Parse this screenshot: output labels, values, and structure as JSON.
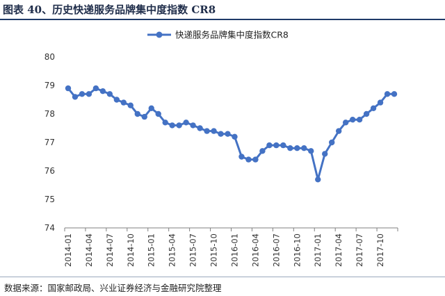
{
  "header": {
    "title": "图表 40、历史快递服务品牌集中度指数 CR8"
  },
  "footer": {
    "source": "数据来源：国家邮政局、兴业证券经济与金融研究院整理"
  },
  "colors": {
    "series": "#4472c4",
    "axis": "#7f7f7f",
    "title": "#1f2d4a",
    "rule": "#1f3a68"
  },
  "chart_data": {
    "type": "line",
    "title": "",
    "xlabel": "",
    "ylabel": "",
    "ylim": [
      74,
      80
    ],
    "yticks": [
      74,
      75,
      76,
      77,
      78,
      79,
      80
    ],
    "grid": false,
    "legend": "top-center",
    "x_tick_labels": [
      "2014-01",
      "2014-04",
      "2014-07",
      "2014-10",
      "2015-01",
      "2015-04",
      "2015-07",
      "2015-10",
      "2016-01",
      "2016-04",
      "2016-07",
      "2016-10",
      "2017-01",
      "2017-04",
      "2017-07",
      "2017-10"
    ],
    "x": [
      "2014-01",
      "2014-02",
      "2014-03",
      "2014-04",
      "2014-05",
      "2014-06",
      "2014-07",
      "2014-08",
      "2014-09",
      "2014-10",
      "2014-11",
      "2014-12",
      "2015-01",
      "2015-02",
      "2015-03",
      "2015-04",
      "2015-05",
      "2015-06",
      "2015-07",
      "2015-08",
      "2015-09",
      "2015-10",
      "2015-11",
      "2015-12",
      "2016-01",
      "2016-02",
      "2016-03",
      "2016-04",
      "2016-05",
      "2016-06",
      "2016-07",
      "2016-08",
      "2016-09",
      "2016-10",
      "2016-11",
      "2016-12",
      "2017-01",
      "2017-02",
      "2017-03",
      "2017-04",
      "2017-05",
      "2017-06",
      "2017-07",
      "2017-08",
      "2017-09",
      "2017-10",
      "2017-11",
      "2017-12"
    ],
    "series": [
      {
        "name": "快递服务品牌集中度指数CR8",
        "values": [
          78.9,
          78.6,
          78.7,
          78.7,
          78.9,
          78.8,
          78.7,
          78.5,
          78.4,
          78.3,
          78.0,
          77.9,
          78.2,
          78.0,
          77.7,
          77.6,
          77.6,
          77.7,
          77.6,
          77.5,
          77.4,
          77.4,
          77.3,
          77.3,
          77.2,
          76.5,
          76.4,
          76.4,
          76.7,
          76.9,
          76.9,
          76.9,
          76.8,
          76.8,
          76.8,
          76.7,
          75.7,
          76.6,
          77.0,
          77.4,
          77.7,
          77.8,
          77.8,
          78.0,
          78.2,
          78.4,
          78.7,
          78.7
        ]
      }
    ]
  }
}
